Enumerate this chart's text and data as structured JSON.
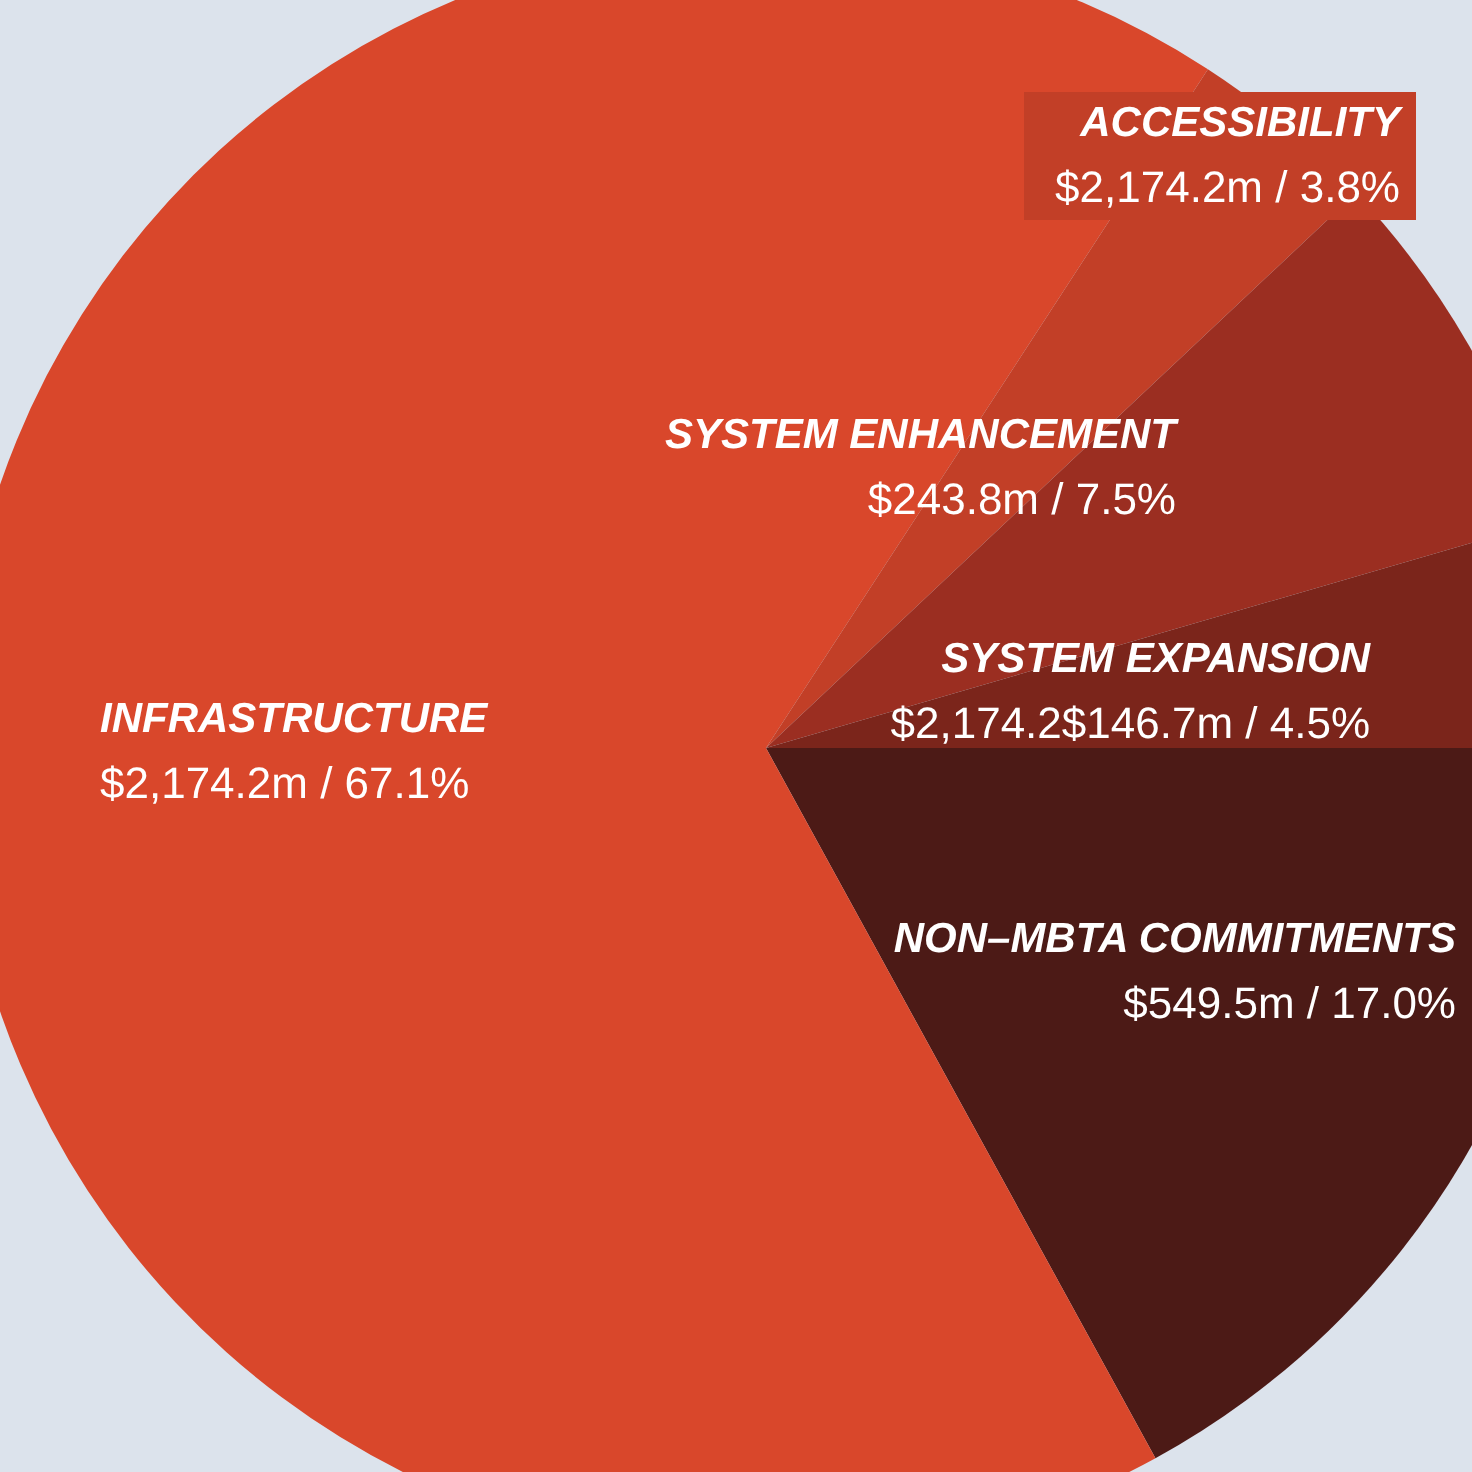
{
  "chart_data": {
    "type": "pie",
    "categories": [
      "NON–MBTA COMMITMENTS",
      "INFRASTRUCTURE",
      "ACCESSIBILITY",
      "SYSTEM ENHANCEMENT",
      "SYSTEM EXPANSION"
    ],
    "values": [
      17.0,
      67.1,
      3.8,
      7.5,
      4.5
    ],
    "colors": [
      "#4c1a16",
      "#d9472b",
      "#c23f27",
      "#9b2e21",
      "#7b251b"
    ],
    "value_labels": [
      "$549.5m / 17.0%",
      "$2,174.2m / 67.1%",
      "$2,174.2m / 3.8%",
      "$243.8m / 7.5%",
      "$2,174.2$146.7m / 4.5%"
    ]
  }
}
